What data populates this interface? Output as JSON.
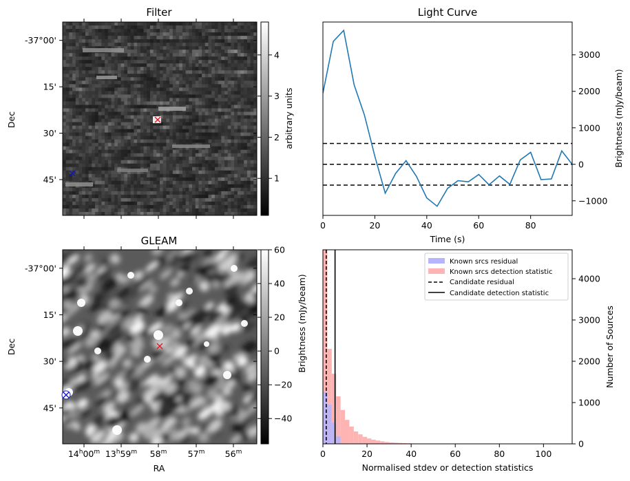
{
  "chart_data": [
    {
      "type": "heatmap",
      "title": "Filter",
      "xlabel": "",
      "ylabel": "Dec",
      "ytick_labels": [
        "-37°00'",
        "15'",
        "30'",
        "45'"
      ],
      "colorbar": {
        "label": "arbitrary units",
        "range": [
          0.1,
          4.8
        ],
        "ticks": [
          1,
          2,
          3,
          4
        ]
      },
      "markers": [
        {
          "name": "candidate",
          "symbol": "x",
          "color": "#e8141e"
        },
        {
          "name": "reference source",
          "symbol": "x",
          "color": "#1414c8"
        }
      ]
    },
    {
      "type": "line",
      "title": "Light Curve",
      "xlabel": "Time (s)",
      "ylabel": "Brightness (mJy/beam)",
      "xlim": [
        0,
        96
      ],
      "ylim": [
        -1400,
        3900
      ],
      "xticks": [
        0,
        20,
        40,
        60,
        80
      ],
      "yticks": [
        -1000,
        0,
        1000,
        2000,
        3000
      ],
      "color": "#1f77b4",
      "x": [
        0,
        4,
        8,
        12,
        16,
        20,
        24,
        28,
        32,
        36,
        40,
        44,
        48,
        52,
        56,
        60,
        64,
        68,
        72,
        76,
        80,
        84,
        88,
        92,
        96
      ],
      "y": [
        1950,
        3370,
        3670,
        2180,
        1350,
        220,
        -790,
        -250,
        100,
        -330,
        -920,
        -1150,
        -660,
        -450,
        -480,
        -280,
        -560,
        -320,
        -550,
        120,
        330,
        -420,
        -400,
        370,
        0
      ],
      "hlines": [
        570,
        0,
        -570
      ]
    },
    {
      "type": "heatmap",
      "title": "GLEAM",
      "xlabel": "RA",
      "ylabel": "Dec",
      "xtick_labels": [
        "14h00m",
        "13h59m",
        "58m",
        "57m",
        "56m"
      ],
      "ytick_labels": [
        "-37°00'",
        "15'",
        "30'",
        "45'"
      ],
      "colorbar": {
        "label": "Brightness (mJy/beam)",
        "range": [
          -55,
          60
        ],
        "ticks": [
          -40,
          -20,
          0,
          20,
          40,
          60
        ]
      },
      "markers": [
        {
          "name": "candidate",
          "symbol": "x",
          "color": "#e8141e"
        },
        {
          "name": "reference source",
          "symbol": "x",
          "color": "#1414c8"
        }
      ]
    },
    {
      "type": "bar",
      "title": "",
      "xlabel": "Normalised stdev or detection statistics",
      "ylabel": "Number of Sources",
      "xlim": [
        0,
        113
      ],
      "ylim": [
        0,
        4700
      ],
      "xticks": [
        0,
        20,
        40,
        60,
        80,
        100
      ],
      "yticks": [
        0,
        1000,
        2000,
        3000,
        4000
      ],
      "bin_width": 2,
      "series": [
        {
          "name": "Known srcs residual",
          "color": "#b4b4ff",
          "x": [
            0,
            2,
            4,
            6
          ],
          "values": [
            1250,
            950,
            520,
            180
          ]
        },
        {
          "name": "Known srcs detection statistic",
          "color": "#ffb4b4",
          "x": [
            0,
            2,
            4,
            6,
            8,
            10,
            12,
            14,
            16,
            18,
            20,
            22,
            24,
            26,
            28,
            30,
            32,
            34,
            36,
            38,
            40,
            44,
            48,
            52,
            58,
            68,
            82,
            88,
            106
          ],
          "values": [
            4750,
            2300,
            1700,
            1150,
            820,
            580,
            420,
            300,
            230,
            170,
            130,
            100,
            80,
            60,
            45,
            35,
            28,
            22,
            18,
            14,
            10,
            8,
            6,
            5,
            4,
            3,
            2,
            2,
            3
          ]
        }
      ],
      "vlines": [
        {
          "name": "Candidate residual",
          "x": 1.5,
          "style": "dashed"
        },
        {
          "name": "Candidate detection statistic",
          "x": 5.5,
          "style": "solid"
        }
      ],
      "legend": "top-right",
      "extra_label": "Brightness (mJy/beam)"
    }
  ]
}
